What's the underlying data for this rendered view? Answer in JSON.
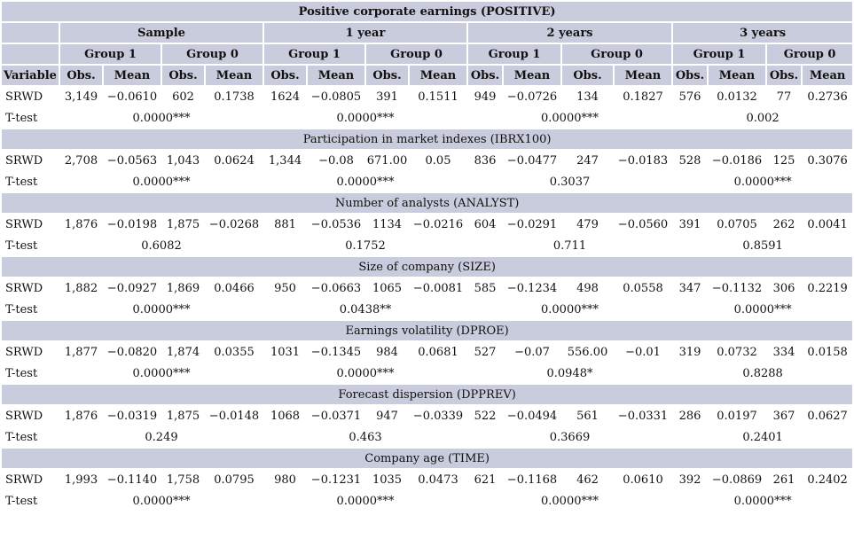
{
  "table": {
    "title": "Positive corporate earnings (POSITIVE)",
    "period_headers": [
      "Sample",
      "1 year",
      "2 years",
      "3 years"
    ],
    "group_headers": [
      "Group 1",
      "Group 0",
      "Group 1",
      "Group 0",
      "Group 1",
      "Group 0",
      "Group 1",
      "Group 0"
    ],
    "col_headers": [
      "Variable",
      "Obs.",
      "Mean",
      "Obs.",
      "Mean",
      "Obs.",
      "Mean",
      "Obs.",
      "Mean",
      "Obs.",
      "Mean",
      "Obs.",
      "Mean",
      "Obs.",
      "Mean",
      "Obs.",
      "Mean"
    ],
    "sections": [
      {
        "title": "",
        "srwd": [
          "SRWD",
          "3,149",
          "−0.0610",
          "602",
          "0.1738",
          "1624",
          "−0.0805",
          "391",
          "0.1511",
          "949",
          "−0.0726",
          "134",
          "0.1827",
          "576",
          "0.0132",
          "77",
          "0.2736"
        ],
        "ttest_label": "T-test",
        "ttest": [
          "0.0000***",
          "0.0000***",
          "0.0000***",
          "0.002"
        ]
      },
      {
        "title": "Participation in market indexes (IBRX100)",
        "srwd": [
          "SRWD",
          "2,708",
          "−0.0563",
          "1,043",
          "0.0624",
          "1,344",
          "−0.08",
          "671.00",
          "0.05",
          "836",
          "−0.0477",
          "247",
          "−0.0183",
          "528",
          "−0.0186",
          "125",
          "0.3076"
        ],
        "ttest_label": "T-test",
        "ttest": [
          "0.0000***",
          "0.0000***",
          "0.3037",
          "0.0000***"
        ]
      },
      {
        "title": "Number of analysts (ANALYST)",
        "srwd": [
          "SRWD",
          "1,876",
          "−0.0198",
          "1,875",
          "−0.0268",
          "881",
          "−0.0536",
          "1134",
          "−0.0216",
          "604",
          "−0.0291",
          "479",
          "−0.0560",
          "391",
          "0.0705",
          "262",
          "0.0041"
        ],
        "ttest_label": "T-test",
        "ttest": [
          "0.6082",
          "0.1752",
          "0.711",
          "0.8591"
        ]
      },
      {
        "title": "Size of company (SIZE)",
        "srwd": [
          "SRWD",
          "1,882",
          "−0.0927",
          "1,869",
          "0.0466",
          "950",
          "−0.0663",
          "1065",
          "−0.0081",
          "585",
          "−0.1234",
          "498",
          "0.0558",
          "347",
          "−0.1132",
          "306",
          "0.2219"
        ],
        "ttest_label": "T-test",
        "ttest": [
          "0.0000***",
          "0.0438**",
          "0.0000***",
          "0.0000***"
        ]
      },
      {
        "title": "Earnings volatility (DPROE)",
        "srwd": [
          "SRWD",
          "1,877",
          "−0.0820",
          "1,874",
          "0.0355",
          "1031",
          "−0.1345",
          "984",
          "0.0681",
          "527",
          "−0.07",
          "556.00",
          "−0.01",
          "319",
          "0.0732",
          "334",
          "0.0158"
        ],
        "ttest_label": "T-test",
        "ttest": [
          "0.0000***",
          "0.0000***",
          "0.0948*",
          "0.8288"
        ]
      },
      {
        "title": "Forecast dispersion (DPPREV)",
        "srwd": [
          "SRWD",
          "1,876",
          "−0.0319",
          "1,875",
          "−0.0148",
          "1068",
          "−0.0371",
          "947",
          "−0.0339",
          "522",
          "−0.0494",
          "561",
          "−0.0331",
          "286",
          "0.0197",
          "367",
          "0.0627"
        ],
        "ttest_label": "T-test",
        "ttest": [
          "0.249",
          "0.463",
          "0.3669",
          "0.2401"
        ]
      },
      {
        "title": "Company age (TIME)",
        "srwd": [
          "SRWD",
          "1,993",
          "−0.1140",
          "1,758",
          "0.0795",
          "980",
          "−0.1231",
          "1035",
          "0.0473",
          "621",
          "−0.1168",
          "462",
          "0.0610",
          "392",
          "−0.0869",
          "261",
          "0.2402"
        ],
        "ttest_label": "T-test",
        "ttest": [
          "0.0000***",
          "0.0000***",
          "0.0000***",
          "0.0000***"
        ]
      }
    ]
  }
}
